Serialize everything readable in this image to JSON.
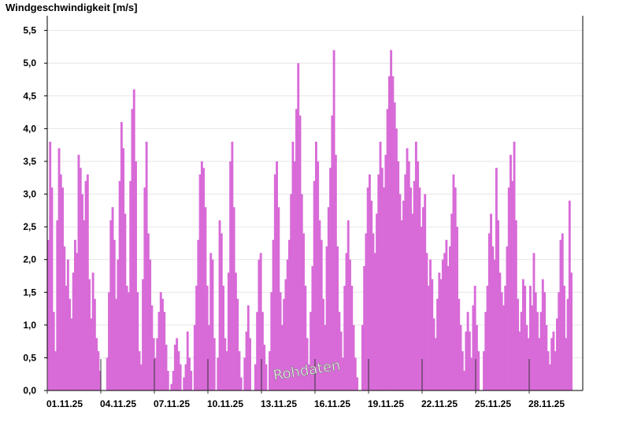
{
  "chart_data": {
    "type": "bar",
    "title": "Windgeschwindigkeit [m/s]",
    "xlabel": "",
    "ylabel": "Windgeschwindigkeit [m/s]",
    "ylim": [
      0,
      5.7
    ],
    "yticks": [
      "0,0",
      "0,5",
      "1,0",
      "1,5",
      "2,0",
      "2,5",
      "3,0",
      "3,5",
      "4,0",
      "4,5",
      "5,0",
      "5,5"
    ],
    "xticks": [
      "01.11.25",
      "04.11.25",
      "07.11.25",
      "10.11.25",
      "13.11.25",
      "16.11.25",
      "19.11.25",
      "22.11.25",
      "25.11.25",
      "28.11.25"
    ],
    "x_unit": "days since 01.11.25 (tick at day start)",
    "watermark": "Rohdaten",
    "grid": true,
    "bar_color": "#d86bd8",
    "series": [
      {
        "name": "Windgeschwindigkeit",
        "points": [
          [
            0.0,
            2.3
          ],
          [
            0.1,
            3.8
          ],
          [
            0.2,
            3.1
          ],
          [
            0.3,
            1.2
          ],
          [
            0.4,
            0.6
          ],
          [
            0.5,
            2.6
          ],
          [
            0.6,
            3.7
          ],
          [
            0.7,
            3.3
          ],
          [
            0.8,
            3.1
          ],
          [
            0.9,
            2.2
          ],
          [
            1.0,
            1.6
          ],
          [
            1.1,
            2.0
          ],
          [
            1.2,
            1.4
          ],
          [
            1.3,
            1.1
          ],
          [
            1.4,
            1.8
          ],
          [
            1.5,
            2.3
          ],
          [
            1.6,
            2.1
          ],
          [
            1.7,
            3.6
          ],
          [
            1.8,
            3.4
          ],
          [
            1.9,
            3.0
          ],
          [
            2.0,
            2.6
          ],
          [
            2.1,
            3.2
          ],
          [
            2.2,
            3.3
          ],
          [
            2.3,
            1.7
          ],
          [
            2.4,
            1.1
          ],
          [
            2.5,
            1.8
          ],
          [
            2.6,
            1.4
          ],
          [
            2.7,
            0.8
          ],
          [
            2.8,
            0.6
          ],
          [
            2.9,
            0.3
          ],
          [
            3.0,
            0.0
          ],
          [
            3.1,
            0.0
          ],
          [
            3.2,
            0.0
          ],
          [
            3.3,
            0.5
          ],
          [
            3.4,
            1.5
          ],
          [
            3.5,
            2.6
          ],
          [
            3.6,
            2.8
          ],
          [
            3.7,
            2.3
          ],
          [
            3.8,
            1.4
          ],
          [
            3.9,
            2.0
          ],
          [
            4.0,
            3.2
          ],
          [
            4.1,
            4.1
          ],
          [
            4.2,
            3.7
          ],
          [
            4.3,
            2.7
          ],
          [
            4.4,
            1.6
          ],
          [
            4.5,
            1.5
          ],
          [
            4.6,
            3.2
          ],
          [
            4.7,
            4.3
          ],
          [
            4.8,
            4.6
          ],
          [
            4.9,
            3.5
          ],
          [
            5.0,
            1.5
          ],
          [
            5.1,
            0.6
          ],
          [
            5.2,
            0.4
          ],
          [
            5.3,
            1.7
          ],
          [
            5.4,
            3.1
          ],
          [
            5.5,
            3.8
          ],
          [
            5.6,
            2.4
          ],
          [
            5.7,
            2.0
          ],
          [
            5.8,
            1.3
          ],
          [
            5.9,
            0.8
          ],
          [
            6.0,
            0.5
          ],
          [
            6.1,
            0.8
          ],
          [
            6.2,
            1.2
          ],
          [
            6.3,
            1.5
          ],
          [
            6.4,
            1.4
          ],
          [
            6.5,
            1.2
          ],
          [
            6.6,
            0.7
          ],
          [
            6.7,
            0.3
          ],
          [
            6.8,
            0.0
          ],
          [
            6.9,
            0.1
          ],
          [
            7.0,
            0.3
          ],
          [
            7.1,
            0.7
          ],
          [
            7.2,
            0.8
          ],
          [
            7.3,
            0.6
          ],
          [
            7.4,
            0.4
          ],
          [
            7.5,
            0.0
          ],
          [
            7.6,
            0.2
          ],
          [
            7.7,
            0.4
          ],
          [
            7.8,
            0.9
          ],
          [
            7.9,
            0.5
          ],
          [
            8.0,
            0.3
          ],
          [
            8.1,
            0.0
          ],
          [
            8.2,
            1.0
          ],
          [
            8.3,
            1.6
          ],
          [
            8.4,
            2.3
          ],
          [
            8.5,
            3.3
          ],
          [
            8.6,
            3.5
          ],
          [
            8.7,
            3.4
          ],
          [
            8.8,
            2.8
          ],
          [
            8.9,
            1.6
          ],
          [
            9.0,
            1.0
          ],
          [
            9.1,
            2.1
          ],
          [
            9.2,
            2.0
          ],
          [
            9.3,
            0.8
          ],
          [
            9.4,
            0.0
          ],
          [
            9.5,
            0.5
          ],
          [
            9.6,
            2.6
          ],
          [
            9.7,
            2.4
          ],
          [
            9.8,
            1.6
          ],
          [
            9.9,
            0.8
          ],
          [
            10.0,
            0.6
          ],
          [
            10.1,
            1.8
          ],
          [
            10.2,
            3.5
          ],
          [
            10.3,
            3.8
          ],
          [
            10.4,
            2.8
          ],
          [
            10.5,
            1.8
          ],
          [
            10.6,
            1.4
          ],
          [
            10.7,
            0.6
          ],
          [
            10.8,
            0.2
          ],
          [
            10.9,
            0.0
          ],
          [
            11.0,
            0.5
          ],
          [
            11.1,
            0.9
          ],
          [
            11.2,
            1.3
          ],
          [
            11.3,
            0.8
          ],
          [
            11.4,
            0.0
          ],
          [
            11.5,
            0.0
          ],
          [
            11.6,
            0.4
          ],
          [
            11.7,
            1.2
          ],
          [
            11.8,
            2.0
          ],
          [
            11.9,
            2.1
          ],
          [
            12.0,
            1.2
          ],
          [
            12.1,
            0.7
          ],
          [
            12.2,
            0.4
          ],
          [
            12.3,
            0.0
          ],
          [
            12.4,
            0.6
          ],
          [
            12.5,
            1.5
          ],
          [
            12.6,
            2.3
          ],
          [
            12.7,
            3.3
          ],
          [
            12.8,
            3.5
          ],
          [
            12.9,
            2.8
          ],
          [
            13.0,
            1.5
          ],
          [
            13.1,
            1.0
          ],
          [
            13.2,
            1.4
          ],
          [
            13.3,
            1.7
          ],
          [
            13.4,
            2.0
          ],
          [
            13.5,
            2.3
          ],
          [
            13.6,
            3.0
          ],
          [
            13.7,
            3.8
          ],
          [
            13.8,
            3.5
          ],
          [
            13.9,
            4.3
          ],
          [
            14.0,
            5.0
          ],
          [
            14.1,
            4.2
          ],
          [
            14.2,
            3.0
          ],
          [
            14.3,
            2.4
          ],
          [
            14.4,
            1.6
          ],
          [
            14.5,
            0.8
          ],
          [
            14.6,
            0.4
          ],
          [
            14.7,
            1.2
          ],
          [
            14.8,
            1.9
          ],
          [
            14.9,
            3.2
          ],
          [
            15.0,
            3.8
          ],
          [
            15.1,
            3.5
          ],
          [
            15.2,
            2.6
          ],
          [
            15.3,
            2.3
          ],
          [
            15.4,
            1.4
          ],
          [
            15.5,
            1.0
          ],
          [
            15.6,
            2.2
          ],
          [
            15.7,
            2.8
          ],
          [
            15.8,
            3.4
          ],
          [
            15.9,
            4.2
          ],
          [
            16.0,
            5.2
          ],
          [
            16.1,
            3.6
          ],
          [
            16.2,
            2.2
          ],
          [
            16.3,
            1.2
          ],
          [
            16.4,
            0.9
          ],
          [
            16.5,
            0.5
          ],
          [
            16.6,
            1.6
          ],
          [
            16.7,
            2.1
          ],
          [
            16.8,
            2.6
          ],
          [
            16.9,
            2.0
          ],
          [
            17.0,
            1.6
          ],
          [
            17.1,
            1.0
          ],
          [
            17.2,
            0.5
          ],
          [
            17.3,
            0.2
          ],
          [
            17.4,
            0.0
          ],
          [
            17.5,
            0.0
          ],
          [
            17.6,
            1.0
          ],
          [
            17.7,
            1.9
          ],
          [
            17.8,
            2.4
          ],
          [
            17.9,
            3.1
          ],
          [
            18.0,
            3.3
          ],
          [
            18.1,
            2.9
          ],
          [
            18.2,
            2.4
          ],
          [
            18.3,
            2.1
          ],
          [
            18.4,
            2.7
          ],
          [
            18.5,
            3.3
          ],
          [
            18.6,
            3.8
          ],
          [
            18.7,
            3.4
          ],
          [
            18.8,
            3.1
          ],
          [
            18.9,
            3.6
          ],
          [
            19.0,
            4.3
          ],
          [
            19.1,
            4.8
          ],
          [
            19.2,
            5.2
          ],
          [
            19.3,
            4.8
          ],
          [
            19.4,
            4.4
          ],
          [
            19.5,
            4.0
          ],
          [
            19.6,
            3.5
          ],
          [
            19.7,
            3.0
          ],
          [
            19.8,
            2.6
          ],
          [
            19.9,
            2.9
          ],
          [
            20.0,
            3.3
          ],
          [
            20.1,
            3.7
          ],
          [
            20.2,
            3.5
          ],
          [
            20.3,
            3.1
          ],
          [
            20.4,
            2.7
          ],
          [
            20.5,
            3.2
          ],
          [
            20.6,
            3.8
          ],
          [
            20.7,
            3.5
          ],
          [
            20.8,
            3.1
          ],
          [
            20.9,
            2.5
          ],
          [
            21.0,
            2.8
          ],
          [
            21.1,
            3.0
          ],
          [
            21.2,
            2.1
          ],
          [
            21.3,
            1.6
          ],
          [
            21.4,
            2.0
          ],
          [
            21.5,
            1.7
          ],
          [
            21.6,
            1.1
          ],
          [
            21.7,
            0.8
          ],
          [
            21.8,
            1.4
          ],
          [
            21.9,
            1.8
          ],
          [
            22.0,
            1.7
          ],
          [
            22.1,
            2.0
          ],
          [
            22.2,
            2.1
          ],
          [
            22.3,
            2.3
          ],
          [
            22.4,
            1.9
          ],
          [
            22.5,
            2.2
          ],
          [
            22.6,
            2.7
          ],
          [
            22.7,
            3.3
          ],
          [
            22.8,
            3.1
          ],
          [
            22.9,
            2.5
          ],
          [
            23.0,
            1.4
          ],
          [
            23.1,
            1.0
          ],
          [
            23.2,
            0.6
          ],
          [
            23.3,
            0.3
          ],
          [
            23.4,
            0.9
          ],
          [
            23.5,
            1.2
          ],
          [
            23.6,
            0.9
          ],
          [
            23.7,
            0.5
          ],
          [
            23.8,
            1.3
          ],
          [
            23.9,
            1.6
          ],
          [
            24.0,
            1.0
          ],
          [
            24.1,
            0.6
          ],
          [
            24.2,
            0.0
          ],
          [
            24.3,
            0.0
          ],
          [
            24.4,
            0.6
          ],
          [
            24.5,
            1.2
          ],
          [
            24.6,
            1.6
          ],
          [
            24.7,
            2.4
          ],
          [
            24.8,
            2.7
          ],
          [
            24.9,
            2.2
          ],
          [
            25.0,
            2.0
          ],
          [
            25.1,
            3.4
          ],
          [
            25.2,
            2.6
          ],
          [
            25.3,
            1.8
          ],
          [
            25.4,
            1.5
          ],
          [
            25.5,
            1.3
          ],
          [
            25.6,
            1.6
          ],
          [
            25.7,
            2.2
          ],
          [
            25.8,
            3.1
          ],
          [
            25.9,
            3.6
          ],
          [
            26.0,
            3.2
          ],
          [
            26.1,
            3.8
          ],
          [
            26.2,
            2.6
          ],
          [
            26.3,
            1.4
          ],
          [
            26.4,
            0.9
          ],
          [
            26.5,
            1.2
          ],
          [
            26.6,
            1.7
          ],
          [
            26.7,
            1.6
          ],
          [
            26.8,
            1.0
          ],
          [
            26.9,
            0.8
          ],
          [
            27.0,
            1.6
          ],
          [
            27.1,
            1.3
          ],
          [
            27.2,
            2.1
          ],
          [
            27.3,
            1.5
          ],
          [
            27.4,
            1.2
          ],
          [
            27.5,
            0.8
          ],
          [
            27.6,
            1.2
          ],
          [
            27.7,
            1.7
          ],
          [
            27.8,
            1.5
          ],
          [
            27.9,
            1.0
          ],
          [
            28.0,
            0.6
          ],
          [
            28.1,
            0.4
          ],
          [
            28.2,
            0.8
          ],
          [
            28.3,
            0.9
          ],
          [
            28.4,
            0.6
          ],
          [
            28.5,
            1.1
          ],
          [
            28.6,
            1.5
          ],
          [
            28.7,
            2.3
          ],
          [
            28.8,
            2.4
          ],
          [
            28.9,
            1.6
          ],
          [
            29.0,
            0.8
          ],
          [
            29.1,
            1.4
          ],
          [
            29.2,
            2.9
          ],
          [
            29.3,
            1.8
          ]
        ]
      }
    ]
  }
}
